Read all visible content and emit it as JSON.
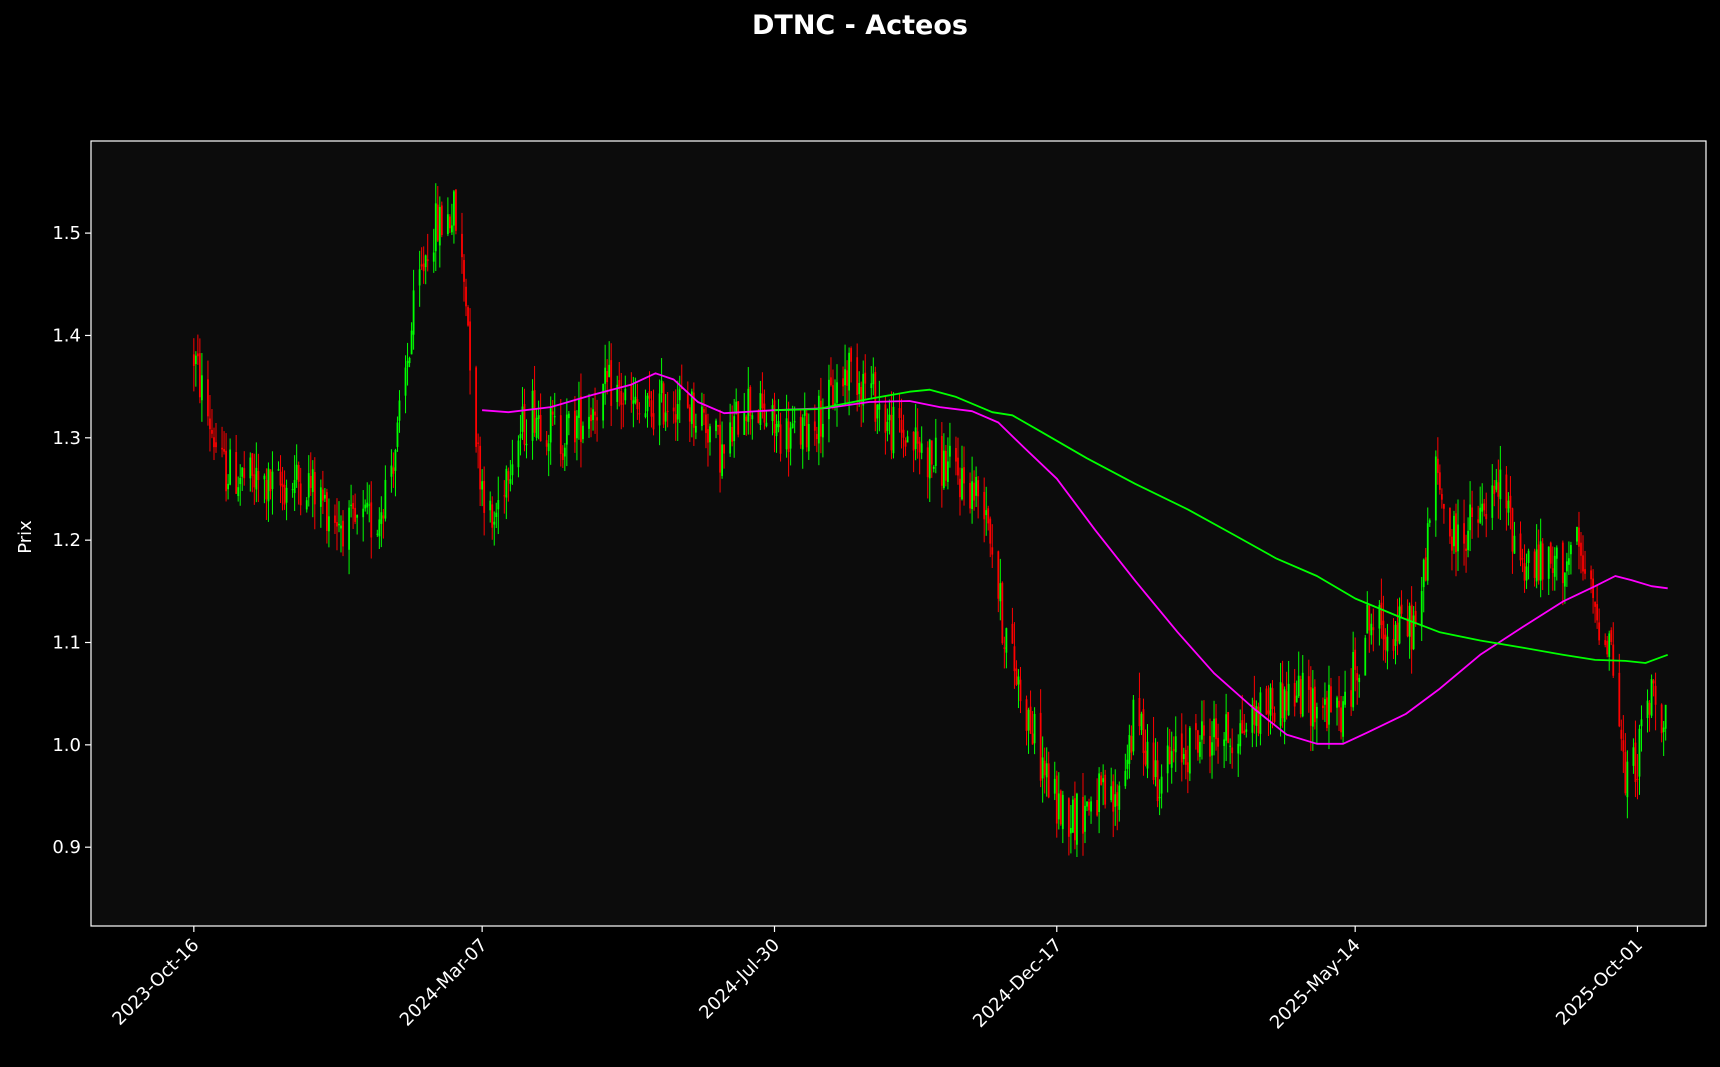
{
  "chart_data": {
    "type": "candlestick",
    "title": "DTNC - Acteos",
    "xlabel": "",
    "ylabel": "Prix",
    "ylim": [
      0.823,
      1.59
    ],
    "y_ticks": [
      "0.9",
      "1.0",
      "1.1",
      "1.2",
      "1.3",
      "1.4",
      "1.5"
    ],
    "x_ticks": [
      "2023-Oct-16",
      "2024-Mar-07",
      "2024-Jul-30",
      "2024-Dec-17",
      "2025-May-14",
      "2025-Oct-01"
    ],
    "xlim": [
      "2023-Aug-26",
      "2025-Nov-04"
    ],
    "colors": {
      "background": "#000000",
      "plot_background": "#0c0c0c",
      "frame": "#ffffff",
      "text": "#ffffff",
      "candle_up": "#00ff00",
      "candle_down": "#ff0000",
      "ma_short": "#ff00ff",
      "ma_long": "#00ff00"
    },
    "price_path": [
      [
        "2023-Oct-16",
        1.38
      ],
      [
        "2023-Oct-22",
        1.33
      ],
      [
        "2023-Oct-30",
        1.27
      ],
      [
        "2023-Nov-10",
        1.26
      ],
      [
        "2023-Nov-25",
        1.25
      ],
      [
        "2023-Dec-10",
        1.26
      ],
      [
        "2023-Dec-22",
        1.23
      ],
      [
        "2024-Jan-02",
        1.21
      ],
      [
        "2024-Jan-15",
        1.22
      ],
      [
        "2024-Jan-25",
        1.3
      ],
      [
        "2024-Feb-02",
        1.42
      ],
      [
        "2024-Feb-10",
        1.5
      ],
      [
        "2024-Feb-22",
        1.52
      ],
      [
        "2024-Feb-28",
        1.44
      ],
      [
        "2024-Mar-05",
        1.28
      ],
      [
        "2024-Mar-12",
        1.21
      ],
      [
        "2024-Mar-20",
        1.28
      ],
      [
        "2024-Apr-01",
        1.33
      ],
      [
        "2024-Apr-15",
        1.3
      ],
      [
        "2024-Apr-25",
        1.32
      ],
      [
        "2024-May-10",
        1.35
      ],
      [
        "2024-May-25",
        1.32
      ],
      [
        "2024-Jun-10",
        1.34
      ],
      [
        "2024-Jun-25",
        1.32
      ],
      [
        "2024-Jul-05",
        1.28
      ],
      [
        "2024-Jul-15",
        1.34
      ],
      [
        "2024-Jul-30",
        1.31
      ],
      [
        "2024-Aug-10",
        1.3
      ],
      [
        "2024-Aug-25",
        1.33
      ],
      [
        "2024-Sep-05",
        1.37
      ],
      [
        "2024-Sep-15",
        1.35
      ],
      [
        "2024-Sep-25",
        1.31
      ],
      [
        "2024-Oct-05",
        1.3
      ],
      [
        "2024-Oct-15",
        1.28
      ],
      [
        "2024-Oct-25",
        1.27
      ],
      [
        "2024-Nov-05",
        1.25
      ],
      [
        "2024-Nov-12",
        1.24
      ],
      [
        "2024-Nov-20",
        1.12
      ],
      [
        "2024-Dec-01",
        1.04
      ],
      [
        "2024-Dec-10",
        0.98
      ],
      [
        "2024-Dec-17",
        0.94
      ],
      [
        "2024-Dec-27",
        0.93
      ],
      [
        "2025-Jan-05",
        0.95
      ],
      [
        "2025-Jan-15",
        0.94
      ],
      [
        "2025-Jan-25",
        1.03
      ],
      [
        "2025-Feb-05",
        0.97
      ],
      [
        "2025-Feb-15",
        0.99
      ],
      [
        "2025-Mar-01",
        1.01
      ],
      [
        "2025-Mar-15",
        1.01
      ],
      [
        "2025-Apr-01",
        1.04
      ],
      [
        "2025-Apr-15",
        1.05
      ],
      [
        "2025-Apr-25",
        1.04
      ],
      [
        "2025-May-08",
        1.03
      ],
      [
        "2025-May-20",
        1.12
      ],
      [
        "2025-Jun-01",
        1.11
      ],
      [
        "2025-Jun-15",
        1.12
      ],
      [
        "2025-Jun-22",
        1.27
      ],
      [
        "2025-Jul-01",
        1.2
      ],
      [
        "2025-Jul-15",
        1.22
      ],
      [
        "2025-Jul-25",
        1.25
      ],
      [
        "2025-Aug-05",
        1.18
      ],
      [
        "2025-Aug-20",
        1.17
      ],
      [
        "2025-Sep-01",
        1.19
      ],
      [
        "2025-Sep-10",
        1.13
      ],
      [
        "2025-Sep-18",
        1.1
      ],
      [
        "2025-Sep-25",
        0.96
      ],
      [
        "2025-Oct-01",
        0.99
      ],
      [
        "2025-Oct-08",
        1.05
      ],
      [
        "2025-Oct-15",
        1.03
      ]
    ],
    "series": [
      {
        "type": "line",
        "color": "#ff00ff",
        "points": [
          [
            "2024-Mar-07",
            1.327
          ],
          [
            "2024-Mar-20",
            1.325
          ],
          [
            "2024-Apr-10",
            1.33
          ],
          [
            "2024-May-01",
            1.342
          ],
          [
            "2024-May-20",
            1.352
          ],
          [
            "2024-Jun-01",
            1.363
          ],
          [
            "2024-Jun-10",
            1.357
          ],
          [
            "2024-Jun-22",
            1.335
          ],
          [
            "2024-Jul-05",
            1.324
          ],
          [
            "2024-Jul-30",
            1.327
          ],
          [
            "2024-Aug-25",
            1.329
          ],
          [
            "2024-Sep-15",
            1.335
          ],
          [
            "2024-Oct-05",
            1.336
          ],
          [
            "2024-Oct-20",
            1.33
          ],
          [
            "2024-Nov-05",
            1.326
          ],
          [
            "2024-Nov-18",
            1.315
          ],
          [
            "2024-Dec-01",
            1.29
          ],
          [
            "2024-Dec-17",
            1.26
          ],
          [
            "2025-Jan-05",
            1.21
          ],
          [
            "2025-Jan-25",
            1.16
          ],
          [
            "2025-Feb-15",
            1.11
          ],
          [
            "2025-Mar-05",
            1.07
          ],
          [
            "2025-Mar-25",
            1.035
          ],
          [
            "2025-Apr-10",
            1.01
          ],
          [
            "2025-Apr-25",
            1.001
          ],
          [
            "2025-May-08",
            1.001
          ],
          [
            "2025-May-20",
            1.012
          ],
          [
            "2025-Jun-08",
            1.03
          ],
          [
            "2025-Jun-25",
            1.055
          ],
          [
            "2025-Jul-15",
            1.088
          ],
          [
            "2025-Aug-05",
            1.115
          ],
          [
            "2025-Aug-25",
            1.14
          ],
          [
            "2025-Sep-10",
            1.155
          ],
          [
            "2025-Sep-20",
            1.165
          ],
          [
            "2025-Sep-28",
            1.161
          ],
          [
            "2025-Oct-08",
            1.155
          ],
          [
            "2025-Oct-16",
            1.153
          ]
        ]
      },
      {
        "type": "line",
        "color": "#00ff00",
        "points": [
          [
            "2024-Jul-30",
            1.327
          ],
          [
            "2024-Aug-20",
            1.328
          ],
          [
            "2024-Sep-15",
            1.338
          ],
          [
            "2024-Oct-05",
            1.345
          ],
          [
            "2024-Oct-15",
            1.347
          ],
          [
            "2024-Oct-28",
            1.34
          ],
          [
            "2024-Nov-15",
            1.325
          ],
          [
            "2024-Nov-25",
            1.322
          ],
          [
            "2024-Dec-10",
            1.305
          ],
          [
            "2025-Jan-01",
            1.28
          ],
          [
            "2025-Jan-25",
            1.255
          ],
          [
            "2025-Feb-20",
            1.23
          ],
          [
            "2025-Mar-15",
            1.205
          ],
          [
            "2025-Apr-05",
            1.182
          ],
          [
            "2025-Apr-25",
            1.165
          ],
          [
            "2025-May-14",
            1.143
          ],
          [
            "2025-Jun-05",
            1.125
          ],
          [
            "2025-Jun-25",
            1.11
          ],
          [
            "2025-Jul-15",
            1.102
          ],
          [
            "2025-Aug-05",
            1.095
          ],
          [
            "2025-Aug-25",
            1.088
          ],
          [
            "2025-Sep-10",
            1.083
          ],
          [
            "2025-Sep-25",
            1.082
          ],
          [
            "2025-Oct-05",
            1.08
          ],
          [
            "2025-Oct-16",
            1.088
          ]
        ]
      }
    ]
  }
}
